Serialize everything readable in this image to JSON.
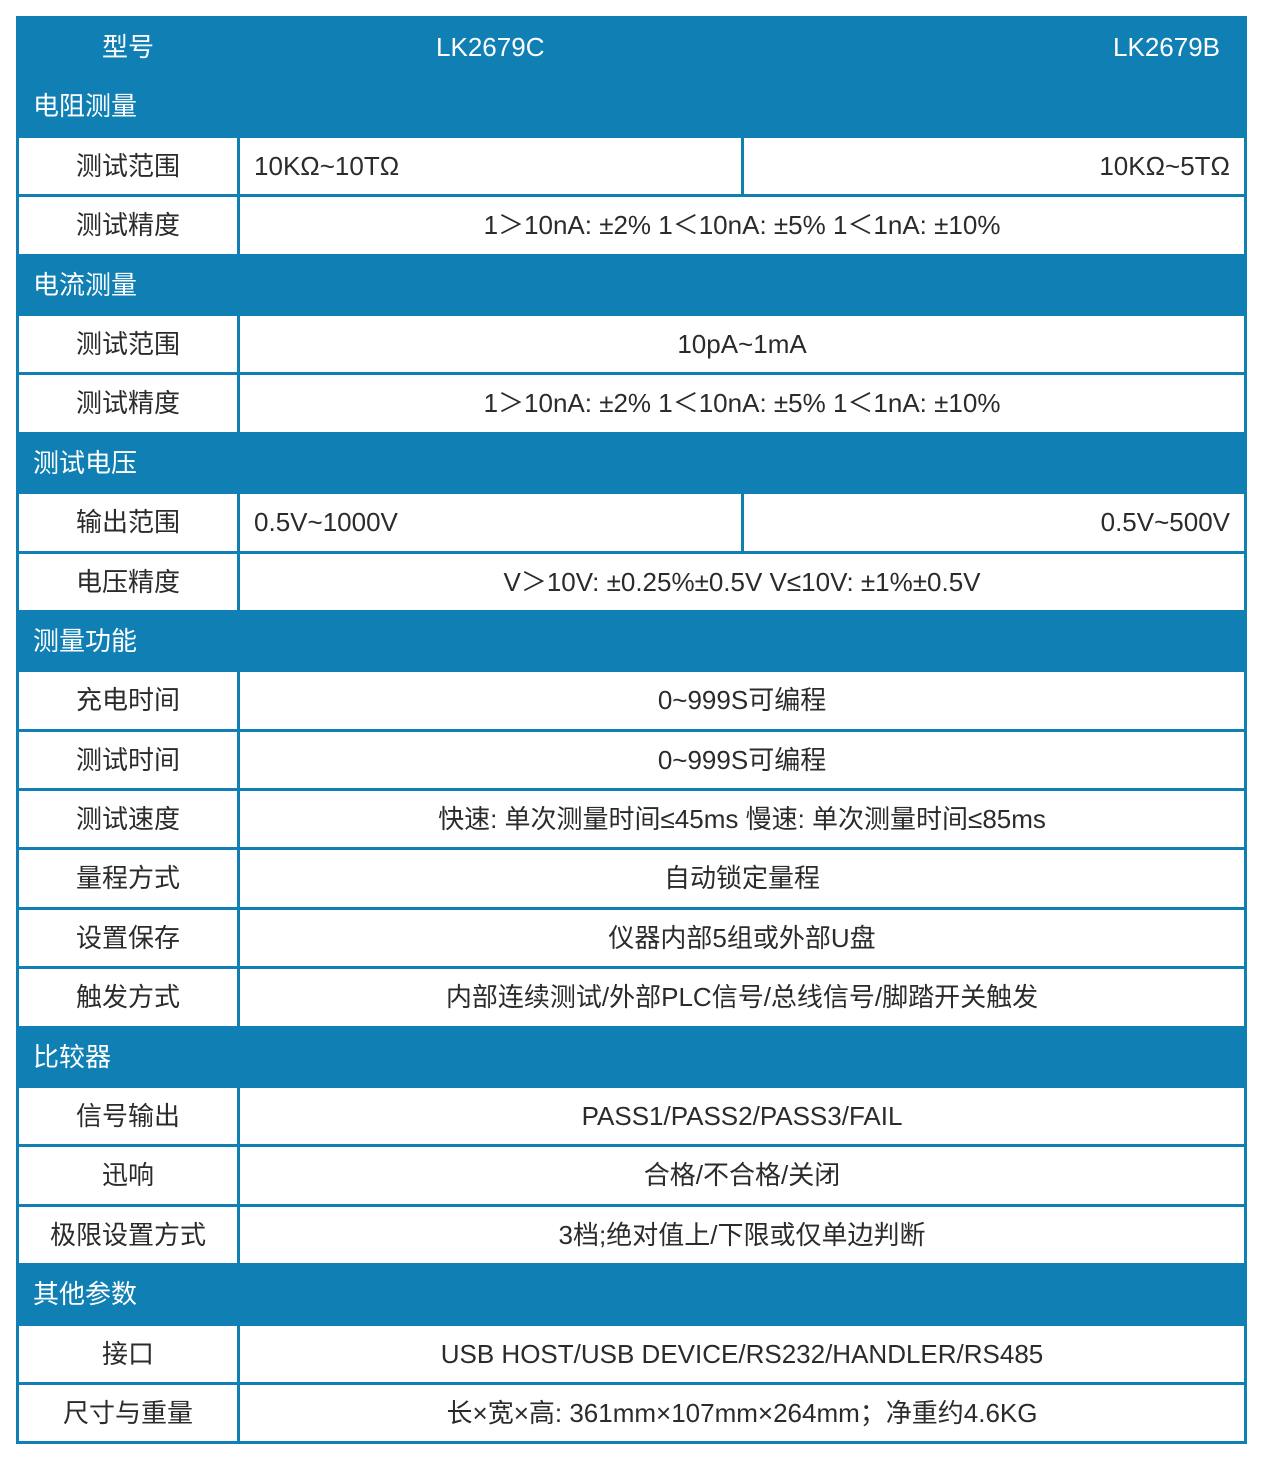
{
  "colors": {
    "border": "#0f7fb4",
    "header_bg": "#0f7fb4",
    "header_fg": "#ffffff",
    "cell_bg": "#ffffff",
    "text": "#2b2b2b"
  },
  "layout": {
    "col_widths_pct": [
      18,
      41,
      41
    ]
  },
  "header": {
    "model_label": "型号",
    "model_c": "LK2679C",
    "model_b": "LK2679B"
  },
  "sections": [
    {
      "title": "电阻测量",
      "rows": [
        {
          "label": "测试范围",
          "type": "split",
          "c": "10KΩ~10TΩ",
          "b": "10KΩ~5TΩ",
          "align_c": "left",
          "align_b": "right"
        },
        {
          "label": "测试精度",
          "type": "merged",
          "value": "1＞10nA: ±2%   1＜10nA: ±5%   1＜1nA: ±10%"
        }
      ]
    },
    {
      "title": "电流测量",
      "rows": [
        {
          "label": "测试范围",
          "type": "merged",
          "value": "10pA~1mA"
        },
        {
          "label": "测试精度",
          "type": "merged",
          "value": "1＞10nA: ±2%   1＜10nA: ±5%   1＜1nA: ±10%"
        }
      ]
    },
    {
      "title": "测试电压",
      "rows": [
        {
          "label": "输出范围",
          "type": "split",
          "c": "0.5V~1000V",
          "b": "0.5V~500V",
          "align_c": "left",
          "align_b": "right"
        },
        {
          "label": "电压精度",
          "type": "merged",
          "value": "V＞10V: ±0.25%±0.5V        V≤10V: ±1%±0.5V"
        }
      ]
    },
    {
      "title": "测量功能",
      "rows": [
        {
          "label": "充电时间",
          "type": "merged",
          "value": "0~999S可编程"
        },
        {
          "label": "测试时间",
          "type": "merged",
          "value": "0~999S可编程"
        },
        {
          "label": "测试速度",
          "type": "merged",
          "value": "快速: 单次测量时间≤45ms    慢速: 单次测量时间≤85ms"
        },
        {
          "label": "量程方式",
          "type": "merged",
          "value": "自动锁定量程"
        },
        {
          "label": "设置保存",
          "type": "merged",
          "value": "仪器内部5组或外部U盘"
        },
        {
          "label": "触发方式",
          "type": "merged",
          "value": "内部连续测试/外部PLC信号/总线信号/脚踏开关触发"
        }
      ]
    },
    {
      "title": "比较器",
      "rows": [
        {
          "label": "信号输出",
          "type": "merged",
          "value": "PASS1/PASS2/PASS3/FAIL"
        },
        {
          "label": "迅响",
          "type": "merged",
          "value": "合格/不合格/关闭"
        },
        {
          "label": "极限设置方式",
          "type": "merged",
          "value": "3档;绝对值上/下限或仅单边判断"
        }
      ]
    },
    {
      "title": "其他参数",
      "rows": [
        {
          "label": "接口",
          "type": "merged",
          "value": "USB HOST/USB DEVICE/RS232/HANDLER/RS485"
        },
        {
          "label": "尺寸与重量",
          "type": "merged",
          "value": "长×宽×高: 361mm×107mm×264mm；净重约4.6KG"
        }
      ]
    }
  ]
}
